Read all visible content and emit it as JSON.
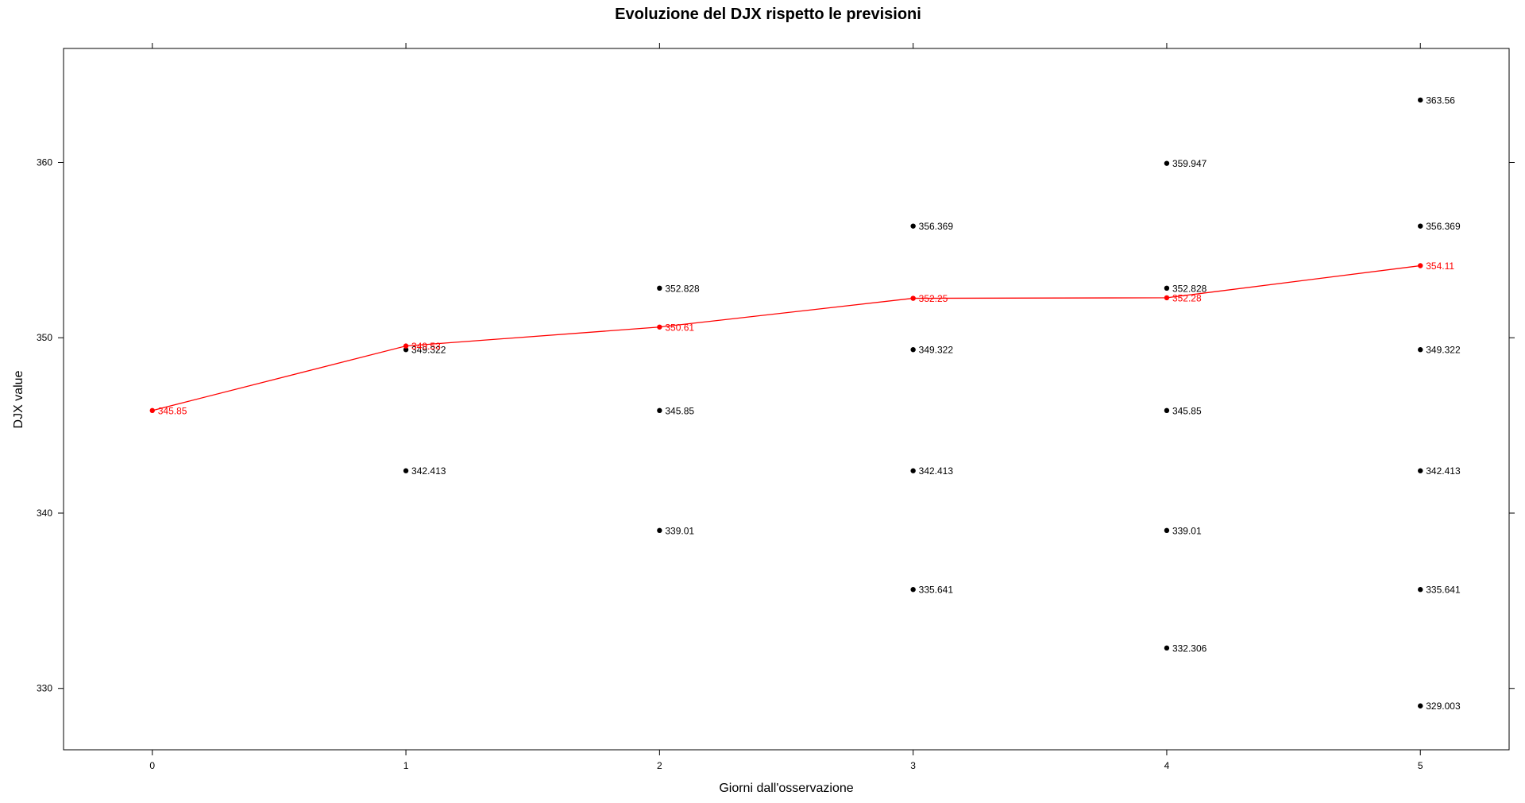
{
  "chart_data": {
    "type": "scatter",
    "title": "Evoluzione del DJX rispetto le previsioni",
    "xlabel": "Giorni dall'osservazione",
    "ylabel": "DJX value",
    "xlim": [
      -0.35,
      5.35
    ],
    "ylim": [
      326.5,
      366.5
    ],
    "x_ticks": [
      0,
      1,
      2,
      3,
      4,
      5
    ],
    "y_ticks": [
      330,
      340,
      350,
      360
    ],
    "grid": false,
    "series": [
      {
        "kind": "points",
        "color": "#000000",
        "points": [
          {
            "x": 1,
            "y": 349.322,
            "label": "349.322"
          },
          {
            "x": 1,
            "y": 342.413,
            "label": "342.413"
          },
          {
            "x": 2,
            "y": 352.828,
            "label": "352.828"
          },
          {
            "x": 2,
            "y": 345.85,
            "label": "345.85"
          },
          {
            "x": 2,
            "y": 339.01,
            "label": "339.01"
          },
          {
            "x": 3,
            "y": 356.369,
            "label": "356.369"
          },
          {
            "x": 3,
            "y": 349.322,
            "label": "349.322"
          },
          {
            "x": 3,
            "y": 342.413,
            "label": "342.413"
          },
          {
            "x": 3,
            "y": 335.641,
            "label": "335.641"
          },
          {
            "x": 4,
            "y": 359.947,
            "label": "359.947"
          },
          {
            "x": 4,
            "y": 352.828,
            "label": "352.828"
          },
          {
            "x": 4,
            "y": 345.85,
            "label": "345.85"
          },
          {
            "x": 4,
            "y": 339.01,
            "label": "339.01"
          },
          {
            "x": 4,
            "y": 332.306,
            "label": "332.306"
          },
          {
            "x": 5,
            "y": 363.56,
            "label": "363.56"
          },
          {
            "x": 5,
            "y": 356.369,
            "label": "356.369"
          },
          {
            "x": 5,
            "y": 349.322,
            "label": "349.322"
          },
          {
            "x": 5,
            "y": 342.413,
            "label": "342.413"
          },
          {
            "x": 5,
            "y": 335.641,
            "label": "335.641"
          },
          {
            "x": 5,
            "y": 329.003,
            "label": "329.003"
          }
        ]
      },
      {
        "kind": "line",
        "color": "#ff0000",
        "points": [
          {
            "x": 0,
            "y": 345.85,
            "label": "345.85"
          },
          {
            "x": 1,
            "y": 349.53,
            "label": "349.53"
          },
          {
            "x": 2,
            "y": 350.61,
            "label": "350.61"
          },
          {
            "x": 3,
            "y": 352.25,
            "label": "352.25"
          },
          {
            "x": 4,
            "y": 352.28,
            "label": "352.28"
          },
          {
            "x": 5,
            "y": 354.11,
            "label": "354.11"
          }
        ]
      }
    ]
  }
}
